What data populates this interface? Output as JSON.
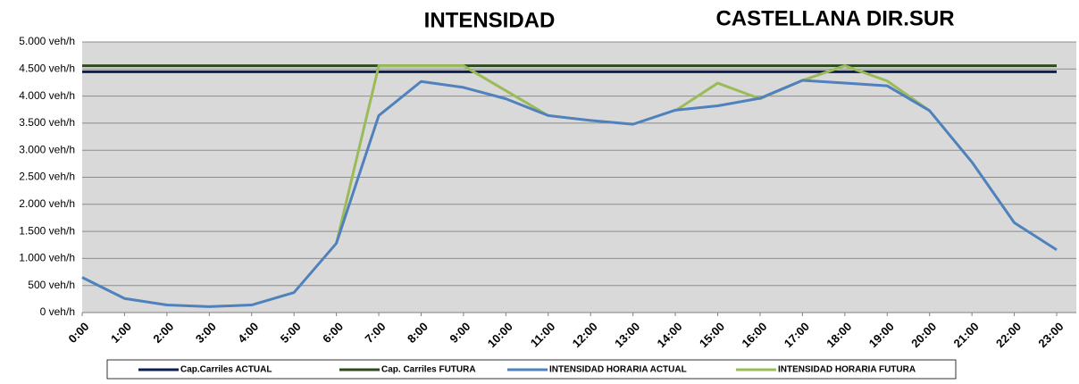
{
  "chart_data": {
    "type": "line",
    "title": "INTENSIDAD",
    "subtitle": "CASTELLANA DIR.SUR",
    "categories": [
      "0:00",
      "1:00",
      "2:00",
      "3:00",
      "4:00",
      "5:00",
      "6:00",
      "7:00",
      "8:00",
      "9:00",
      "10:00",
      "11:00",
      "12:00",
      "13:00",
      "14:00",
      "15:00",
      "16:00",
      "17:00",
      "18:00",
      "19:00",
      "20:00",
      "21:00",
      "22:00",
      "23:00"
    ],
    "series": [
      {
        "name": "Cap.Carriles ACTUAL",
        "color": "#0d1f4f",
        "values": [
          4450,
          4450,
          4450,
          4450,
          4450,
          4450,
          4450,
          4450,
          4450,
          4450,
          4450,
          4450,
          4450,
          4450,
          4450,
          4450,
          4450,
          4450,
          4450,
          4450,
          4450,
          4450,
          4450,
          4450
        ]
      },
      {
        "name": "Cap. Carriles FUTURA",
        "color": "#2f4a1f",
        "values": [
          4560,
          4560,
          4560,
          4560,
          4560,
          4560,
          4560,
          4560,
          4560,
          4560,
          4560,
          4560,
          4560,
          4560,
          4560,
          4560,
          4560,
          4560,
          4560,
          4560,
          4560,
          4560,
          4560,
          4560
        ]
      },
      {
        "name": "INTENSIDAD HORARIA ACTUAL",
        "color": "#4f81bd",
        "values": [
          650,
          260,
          140,
          110,
          140,
          370,
          1280,
          3640,
          4270,
          4160,
          3950,
          3640,
          3550,
          3480,
          3740,
          3820,
          3960,
          4290,
          4240,
          4190,
          3730,
          2780,
          1660,
          1160
        ]
      },
      {
        "name": "INTENSIDAD HORARIA FUTURA",
        "color": "#9bbb59",
        "values": [
          null,
          null,
          null,
          null,
          null,
          null,
          1280,
          4560,
          4560,
          4560,
          4100,
          3640,
          null,
          null,
          3730,
          4240,
          3950,
          4290,
          4560,
          4280,
          3730,
          null,
          null,
          null
        ]
      }
    ],
    "ylim": [
      0,
      5000
    ],
    "yticks": [
      {
        "value": 0,
        "label": "0 veh/h"
      },
      {
        "value": 500,
        "label": "500 veh/h"
      },
      {
        "value": 1000,
        "label": "1.000 veh/h"
      },
      {
        "value": 1500,
        "label": "1.500 veh/h"
      },
      {
        "value": 2000,
        "label": "2.000 veh/h"
      },
      {
        "value": 2500,
        "label": "2.500 veh/h"
      },
      {
        "value": 3000,
        "label": "3.000 veh/h"
      },
      {
        "value": 3500,
        "label": "3.500 veh/h"
      },
      {
        "value": 4000,
        "label": "4.000 veh/h"
      },
      {
        "value": 4500,
        "label": "4.500 veh/h"
      },
      {
        "value": 5000,
        "label": "5.000 veh/h"
      }
    ],
    "grid": true,
    "legend": "bottom"
  }
}
